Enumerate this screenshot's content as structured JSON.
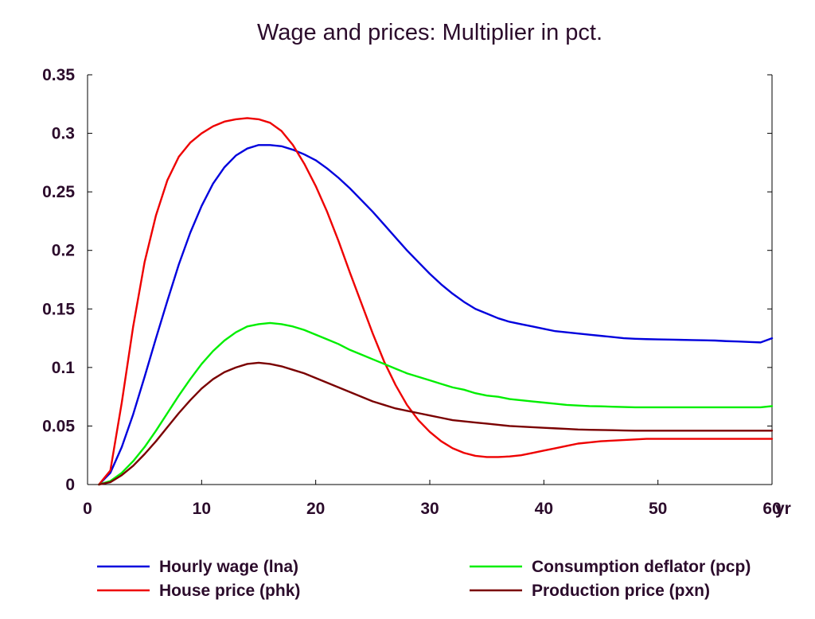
{
  "chart_data": {
    "type": "line",
    "title": "Wage and prices: Multiplier in pct.",
    "xlabel": "",
    "ylabel": "",
    "x_unit_label": "yr",
    "xlim": [
      0,
      60
    ],
    "ylim": [
      0,
      0.35
    ],
    "x_ticks": [
      0,
      10,
      20,
      30,
      40,
      50,
      60
    ],
    "x_tick_labels": [
      "0",
      "10",
      "20",
      "30",
      "40",
      "50",
      "60"
    ],
    "y_ticks": [
      0,
      0.05,
      0.1,
      0.15,
      0.2,
      0.25,
      0.3,
      0.35
    ],
    "y_tick_labels": [
      "0",
      "0.05",
      "0.1",
      "0.15",
      "0.2",
      "0.25",
      "0.3",
      "0.35"
    ],
    "grid": false,
    "legend_position": "bottom",
    "x": [
      1,
      2,
      3,
      4,
      5,
      6,
      7,
      8,
      9,
      10,
      11,
      12,
      13,
      14,
      15,
      16,
      17,
      18,
      19,
      20,
      21,
      22,
      23,
      24,
      25,
      26,
      27,
      28,
      29,
      30,
      31,
      32,
      33,
      34,
      35,
      36,
      37,
      38,
      39,
      40,
      41,
      42,
      43,
      44,
      45,
      46,
      47,
      48,
      49,
      50,
      51,
      52,
      53,
      54,
      55,
      56,
      57,
      58,
      59,
      60
    ],
    "series": [
      {
        "name": "Hourly wage (lna)",
        "color": "#0000dd",
        "values": [
          0.0,
          0.01,
          0.032,
          0.06,
          0.092,
          0.125,
          0.157,
          0.188,
          0.215,
          0.238,
          0.257,
          0.271,
          0.281,
          0.287,
          0.29,
          0.29,
          0.289,
          0.286,
          0.282,
          0.277,
          0.27,
          0.262,
          0.253,
          0.243,
          0.233,
          0.222,
          0.211,
          0.2,
          0.19,
          0.18,
          0.171,
          0.163,
          0.156,
          0.15,
          0.146,
          0.142,
          0.139,
          0.137,
          0.135,
          0.133,
          0.131,
          0.13,
          0.129,
          0.128,
          0.127,
          0.126,
          0.125,
          0.1245,
          0.1242,
          0.124,
          0.1238,
          0.1236,
          0.1234,
          0.1232,
          0.123,
          0.1225,
          0.1222,
          0.1218,
          0.1214,
          0.125
        ]
      },
      {
        "name": "House price (phk)",
        "color": "#ee0000",
        "values": [
          0.0,
          0.012,
          0.07,
          0.135,
          0.19,
          0.23,
          0.26,
          0.28,
          0.292,
          0.3,
          0.306,
          0.31,
          0.312,
          0.313,
          0.312,
          0.309,
          0.302,
          0.29,
          0.274,
          0.255,
          0.233,
          0.208,
          0.181,
          0.155,
          0.129,
          0.105,
          0.085,
          0.068,
          0.055,
          0.045,
          0.037,
          0.031,
          0.027,
          0.0245,
          0.0235,
          0.0235,
          0.024,
          0.025,
          0.027,
          0.029,
          0.031,
          0.033,
          0.035,
          0.036,
          0.037,
          0.0375,
          0.038,
          0.0385,
          0.039,
          0.039,
          0.039,
          0.039,
          0.039,
          0.039,
          0.039,
          0.039,
          0.039,
          0.039,
          0.039,
          0.039
        ]
      },
      {
        "name": "Consumption deflator (pcp)",
        "color": "#00ee00",
        "values": [
          0.0,
          0.003,
          0.01,
          0.02,
          0.032,
          0.046,
          0.061,
          0.076,
          0.09,
          0.103,
          0.114,
          0.123,
          0.13,
          0.135,
          0.137,
          0.138,
          0.137,
          0.135,
          0.132,
          0.128,
          0.124,
          0.12,
          0.115,
          0.111,
          0.107,
          0.103,
          0.099,
          0.095,
          0.092,
          0.089,
          0.086,
          0.083,
          0.081,
          0.078,
          0.076,
          0.075,
          0.073,
          0.072,
          0.071,
          0.07,
          0.069,
          0.068,
          0.0675,
          0.067,
          0.0668,
          0.0665,
          0.0662,
          0.066,
          0.066,
          0.066,
          0.066,
          0.066,
          0.066,
          0.066,
          0.066,
          0.066,
          0.066,
          0.066,
          0.066,
          0.067
        ]
      },
      {
        "name": "Production price (pxn)",
        "color": "#7a0000",
        "values": [
          0.0,
          0.002,
          0.008,
          0.016,
          0.026,
          0.037,
          0.049,
          0.061,
          0.072,
          0.082,
          0.09,
          0.096,
          0.1,
          0.103,
          0.104,
          0.103,
          0.101,
          0.098,
          0.095,
          0.091,
          0.087,
          0.083,
          0.079,
          0.075,
          0.071,
          0.068,
          0.065,
          0.063,
          0.061,
          0.059,
          0.057,
          0.055,
          0.054,
          0.053,
          0.052,
          0.051,
          0.05,
          0.0495,
          0.049,
          0.0485,
          0.048,
          0.0475,
          0.047,
          0.0468,
          0.0466,
          0.0464,
          0.0462,
          0.046,
          0.046,
          0.046,
          0.046,
          0.046,
          0.046,
          0.046,
          0.046,
          0.046,
          0.046,
          0.046,
          0.046,
          0.046
        ]
      }
    ]
  }
}
